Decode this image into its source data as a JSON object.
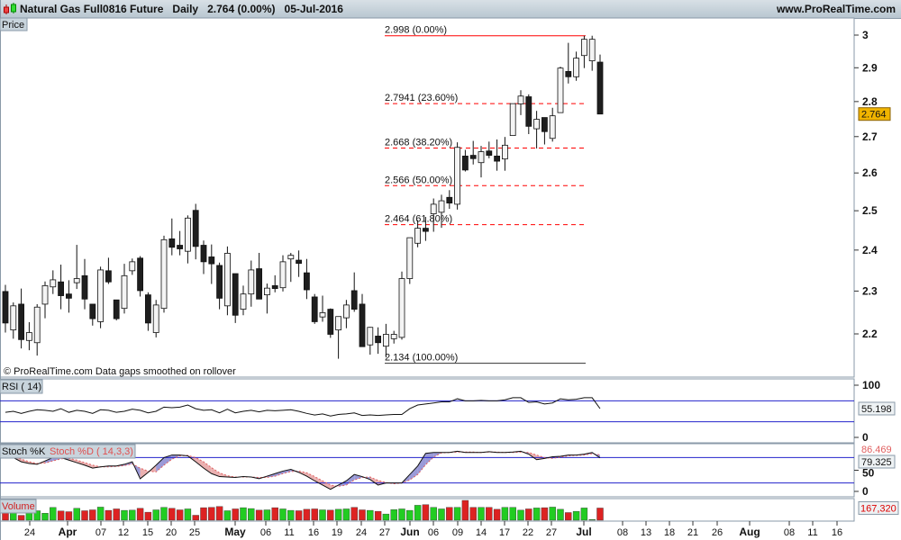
{
  "header": {
    "instrument": "Natural Gas Full0816 Future",
    "period": "Daily",
    "price": "2.764 (0.00%)",
    "date": "05-Jul-2016",
    "site": "www.ProRealTime.com"
  },
  "panes": {
    "price_label": "Price",
    "rsi_label": "RSI ( 14)",
    "stoch_k_label": "Stoch %K",
    "stoch_d_label": "Stoch %D ( 14,3,3)",
    "volume_label": "Volume",
    "watermark": "© ProRealTime.com  Data gaps smoothed on rollover"
  },
  "colors": {
    "up_volume": "#22cc22",
    "down_volume": "#dd2222",
    "fib": "#ff0000",
    "bands": "#2222cc",
    "current_price_bg": "#f0b400"
  },
  "chart_data": [
    {
      "type": "candlestick",
      "scale": "log",
      "ylim": [
        2.12,
        3.04
      ],
      "yticks": [
        "3",
        "2.9",
        "2.8",
        "2.7",
        "2.6",
        "2.5",
        "2.4",
        "2.3",
        "2.2"
      ],
      "current_price": "2.764",
      "fib_levels": [
        {
          "label": "2.998 (0.00%)",
          "value": 2.998
        },
        {
          "label": "2.7941 (23.60%)",
          "value": 2.7941
        },
        {
          "label": "2.668 (38.20%)",
          "value": 2.668
        },
        {
          "label": "2.566 (50.00%)",
          "value": 2.566
        },
        {
          "label": "2.464 (61.80%)",
          "value": 2.464
        },
        {
          "label": "2.134 (100.00%)",
          "value": 2.134
        }
      ],
      "xticks": [
        {
          "label": "24",
          "bold": false
        },
        {
          "label": "Apr",
          "bold": true
        },
        {
          "label": "07",
          "bold": false
        },
        {
          "label": "12",
          "bold": false
        },
        {
          "label": "15",
          "bold": false
        },
        {
          "label": "20",
          "bold": false
        },
        {
          "label": "25",
          "bold": false
        },
        {
          "label": "May",
          "bold": true
        },
        {
          "label": "06",
          "bold": false
        },
        {
          "label": "11",
          "bold": false
        },
        {
          "label": "16",
          "bold": false
        },
        {
          "label": "19",
          "bold": false
        },
        {
          "label": "24",
          "bold": false
        },
        {
          "label": "27",
          "bold": false
        },
        {
          "label": "Jun",
          "bold": true
        },
        {
          "label": "06",
          "bold": false
        },
        {
          "label": "09",
          "bold": false
        },
        {
          "label": "14",
          "bold": false
        },
        {
          "label": "17",
          "bold": false
        },
        {
          "label": "22",
          "bold": false
        },
        {
          "label": "27",
          "bold": false
        },
        {
          "label": "Jul",
          "bold": true
        },
        {
          "label": "08",
          "bold": false
        },
        {
          "label": "13",
          "bold": false
        },
        {
          "label": "18",
          "bold": false
        },
        {
          "label": "21",
          "bold": false
        },
        {
          "label": "26",
          "bold": false
        },
        {
          "label": "Aug",
          "bold": true
        },
        {
          "label": "08",
          "bold": false
        },
        {
          "label": "11",
          "bold": false
        },
        {
          "label": "16",
          "bold": false
        }
      ],
      "ohlc": [
        [
          2.299,
          2.315,
          2.203,
          2.225
        ],
        [
          2.209,
          2.273,
          2.189,
          2.265
        ],
        [
          2.269,
          2.306,
          2.167,
          2.187
        ],
        [
          2.185,
          2.227,
          2.163,
          2.203
        ],
        [
          2.18,
          2.269,
          2.151,
          2.262
        ],
        [
          2.269,
          2.323,
          2.236,
          2.313
        ],
        [
          2.31,
          2.35,
          2.293,
          2.327
        ],
        [
          2.322,
          2.364,
          2.257,
          2.289
        ],
        [
          2.293,
          2.326,
          2.249,
          2.283
        ],
        [
          2.32,
          2.413,
          2.305,
          2.33
        ],
        [
          2.337,
          2.378,
          2.257,
          2.281
        ],
        [
          2.269,
          2.269,
          2.219,
          2.235
        ],
        [
          2.228,
          2.359,
          2.213,
          2.351
        ],
        [
          2.349,
          2.381,
          2.317,
          2.322
        ],
        [
          2.279,
          2.279,
          2.231,
          2.235
        ],
        [
          2.259,
          2.366,
          2.247,
          2.337
        ],
        [
          2.349,
          2.379,
          2.339,
          2.371
        ],
        [
          2.38,
          2.385,
          2.287,
          2.301
        ],
        [
          2.291,
          2.297,
          2.207,
          2.225
        ],
        [
          2.203,
          2.279,
          2.192,
          2.267
        ],
        [
          2.259,
          2.436,
          2.249,
          2.426
        ],
        [
          2.428,
          2.48,
          2.387,
          2.407
        ],
        [
          2.412,
          2.448,
          2.387,
          2.403
        ],
        [
          2.397,
          2.488,
          2.367,
          2.481
        ],
        [
          2.501,
          2.518,
          2.377,
          2.409
        ],
        [
          2.412,
          2.424,
          2.341,
          2.371
        ],
        [
          2.383,
          2.414,
          2.317,
          2.366
        ],
        [
          2.362,
          2.369,
          2.257,
          2.283
        ],
        [
          2.265,
          2.409,
          2.243,
          2.392
        ],
        [
          2.342,
          2.342,
          2.225,
          2.243
        ],
        [
          2.257,
          2.313,
          2.243,
          2.293
        ],
        [
          2.293,
          2.374,
          2.263,
          2.351
        ],
        [
          2.354,
          2.393,
          2.281,
          2.281
        ],
        [
          2.291,
          2.318,
          2.247,
          2.307
        ],
        [
          2.313,
          2.338,
          2.297,
          2.306
        ],
        [
          2.308,
          2.387,
          2.299,
          2.371
        ],
        [
          2.378,
          2.393,
          2.322,
          2.387
        ],
        [
          2.375,
          2.399,
          2.334,
          2.367
        ],
        [
          2.344,
          2.378,
          2.281,
          2.303
        ],
        [
          2.286,
          2.293,
          2.223,
          2.228
        ],
        [
          2.239,
          2.289,
          2.228,
          2.249
        ],
        [
          2.257,
          2.259,
          2.191,
          2.199
        ],
        [
          2.209,
          2.24,
          2.144,
          2.24
        ],
        [
          2.237,
          2.279,
          2.213,
          2.267
        ],
        [
          2.301,
          2.345,
          2.251,
          2.257
        ],
        [
          2.269,
          2.293,
          2.171,
          2.171
        ],
        [
          2.175,
          2.216,
          2.153,
          2.215
        ],
        [
          2.195,
          2.215,
          2.155,
          2.18
        ],
        [
          2.172,
          2.223,
          2.147,
          2.199
        ],
        [
          2.189,
          2.207,
          2.178,
          2.199
        ],
        [
          2.192,
          2.347,
          2.187,
          2.33
        ],
        [
          2.33,
          2.431,
          2.317,
          2.431
        ],
        [
          2.417,
          2.476,
          2.407,
          2.455
        ],
        [
          2.455,
          2.484,
          2.423,
          2.447
        ],
        [
          2.492,
          2.532,
          2.446,
          2.517
        ],
        [
          2.496,
          2.542,
          2.456,
          2.526
        ],
        [
          2.535,
          2.554,
          2.505,
          2.52
        ],
        [
          2.517,
          2.684,
          2.503,
          2.67
        ],
        [
          2.646,
          2.663,
          2.604,
          2.608
        ],
        [
          2.648,
          2.688,
          2.623,
          2.639
        ],
        [
          2.628,
          2.674,
          2.588,
          2.658
        ],
        [
          2.66,
          2.686,
          2.64,
          2.648
        ],
        [
          2.646,
          2.692,
          2.606,
          2.632
        ],
        [
          2.638,
          2.699,
          2.606,
          2.676
        ],
        [
          2.703,
          2.794,
          2.703,
          2.794
        ],
        [
          2.793,
          2.833,
          2.761,
          2.816
        ],
        [
          2.814,
          2.821,
          2.707,
          2.729
        ],
        [
          2.722,
          2.773,
          2.667,
          2.749
        ],
        [
          2.754,
          2.754,
          2.678,
          2.714
        ],
        [
          2.695,
          2.782,
          2.686,
          2.759
        ],
        [
          2.768,
          2.903,
          2.768,
          2.899
        ],
        [
          2.889,
          2.976,
          2.853,
          2.873
        ],
        [
          2.873,
          2.949,
          2.861,
          2.929
        ],
        [
          2.937,
          2.998,
          2.899,
          2.987
        ],
        [
          2.921,
          2.998,
          2.891,
          2.987
        ],
        [
          2.917,
          2.94,
          2.766,
          2.764
        ]
      ]
    },
    {
      "type": "line",
      "title": "RSI ( 14)",
      "ylim": [
        0,
        100
      ],
      "yticks": [
        "100",
        "0"
      ],
      "bands": [
        70,
        30
      ],
      "last_value": "55.198",
      "values": [
        48,
        50,
        46,
        50,
        53,
        52,
        50,
        55,
        48,
        52,
        50,
        46,
        53,
        52,
        48,
        50,
        54,
        52,
        47,
        50,
        58,
        57,
        58,
        62,
        55,
        52,
        53,
        47,
        54,
        47,
        50,
        52,
        49,
        52,
        51,
        52,
        53,
        50,
        46,
        43,
        45,
        41,
        44,
        45,
        47,
        42,
        43,
        42,
        43,
        44,
        44,
        55,
        62,
        64,
        66,
        68,
        68,
        74,
        70,
        70,
        71,
        70,
        70,
        72,
        76,
        76,
        67,
        68,
        64,
        66,
        74,
        72,
        73,
        76,
        76,
        55.198
      ]
    },
    {
      "type": "line",
      "title": "Stoch %K / Stoch %D ( 14,3,3)",
      "ylim": [
        0,
        100
      ],
      "yticks": [
        "50",
        "0"
      ],
      "bands": [
        80,
        20
      ],
      "last_k": "79.325",
      "last_d": "86.469",
      "k": [
        88,
        80,
        70,
        66,
        64,
        72,
        80,
        80,
        74,
        68,
        62,
        55,
        58,
        60,
        60,
        64,
        70,
        30,
        45,
        62,
        80,
        86,
        86,
        84,
        70,
        55,
        42,
        35,
        34,
        33,
        35,
        34,
        30,
        36,
        42,
        48,
        52,
        45,
        36,
        25,
        15,
        5,
        15,
        25,
        40,
        35,
        28,
        15,
        20,
        20,
        20,
        40,
        60,
        90,
        92,
        92,
        92,
        95,
        92,
        92,
        92,
        94,
        92,
        92,
        93,
        95,
        88,
        75,
        78,
        82,
        83,
        86,
        86,
        88,
        92,
        79.325
      ],
      "d": [
        86,
        84,
        76,
        70,
        66,
        67,
        72,
        77,
        78,
        74,
        68,
        62,
        58,
        58,
        59,
        61,
        65,
        55,
        48,
        46,
        62,
        76,
        84,
        85,
        80,
        70,
        56,
        44,
        37,
        34,
        34,
        34,
        33,
        33,
        36,
        42,
        47,
        48,
        44,
        35,
        25,
        15,
        12,
        15,
        27,
        33,
        34,
        26,
        21,
        18,
        20,
        27,
        40,
        63,
        81,
        91,
        92,
        93,
        93,
        93,
        92,
        93,
        93,
        92,
        92,
        93,
        92,
        86,
        80,
        78,
        81,
        84,
        85,
        86,
        89,
        86.469
      ]
    },
    {
      "type": "bar",
      "title": "Volume",
      "last_value": "167,320",
      "values": [
        105000,
        105000,
        67000,
        96000,
        130000,
        96000,
        175000,
        126000,
        117000,
        163000,
        130000,
        142000,
        180000,
        135000,
        155000,
        135000,
        138000,
        163000,
        110000,
        142000,
        176000,
        163000,
        142000,
        155000,
        68000,
        172000,
        176000,
        188000,
        130000,
        155000,
        172000,
        160000,
        138000,
        142000,
        172000,
        155000,
        135000,
        130000,
        150000,
        155000,
        142000,
        138000,
        150000,
        155000,
        176000,
        142000,
        135000,
        122000,
        85000,
        146000,
        155000,
        135000,
        205000,
        214000,
        176000,
        155000,
        176000,
        176000,
        272000,
        176000,
        176000,
        176000,
        150000,
        176000,
        176000,
        138000,
        155000,
        168000,
        172000,
        180000,
        150000,
        105000,
        122000,
        168000,
        10000,
        167320
      ]
    }
  ]
}
